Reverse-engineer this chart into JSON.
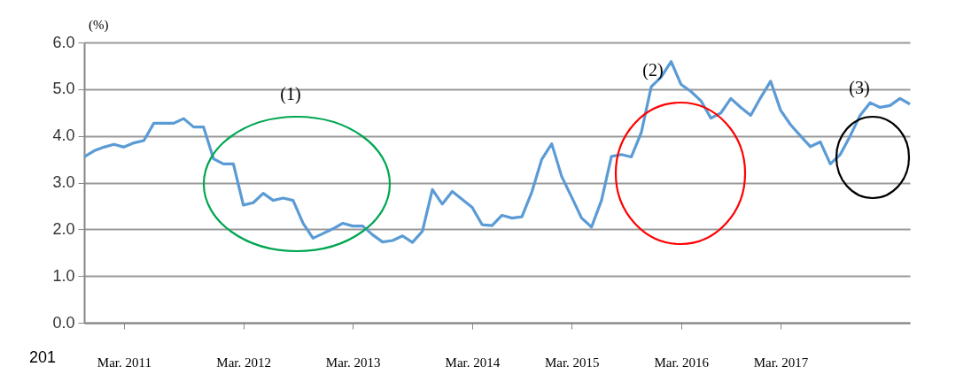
{
  "chart_data": {
    "type": "line",
    "ylabel": "(%)",
    "categories": [
      null,
      null,
      null,
      null,
      "Mar. 2011",
      null,
      null,
      null,
      null,
      null,
      null,
      null,
      null,
      null,
      null,
      null,
      "Mar. 2012",
      null,
      null,
      null,
      null,
      null,
      null,
      null,
      null,
      null,
      null,
      "Mar. 2013",
      null,
      null,
      null,
      null,
      null,
      null,
      null,
      null,
      null,
      null,
      null,
      "Mar. 2014",
      null,
      null,
      null,
      null,
      null,
      null,
      null,
      null,
      null,
      "Mar. 2015",
      null,
      null,
      null,
      null,
      null,
      null,
      null,
      null,
      null,
      null,
      "Mar. 2016",
      null,
      null,
      null,
      null,
      null,
      null,
      null,
      null,
      null,
      "Mar. 2017",
      null,
      null,
      null,
      null,
      null,
      null,
      null,
      null,
      null,
      null,
      null,
      null,
      null
    ],
    "series": [
      {
        "color": "#5b9bd5",
        "values": [
          3.55,
          3.68,
          3.76,
          3.82,
          3.76,
          3.85,
          3.9,
          4.27,
          4.27,
          4.27,
          4.37,
          4.19,
          4.19,
          3.51,
          3.4,
          3.4,
          2.52,
          2.57,
          2.77,
          2.62,
          2.67,
          2.62,
          2.13,
          1.81,
          1.91,
          2.01,
          2.13,
          2.07,
          2.07,
          1.88,
          1.73,
          1.76,
          1.86,
          1.72,
          1.96,
          2.85,
          2.54,
          2.81,
          2.64,
          2.47,
          2.1,
          2.08,
          2.3,
          2.24,
          2.27,
          2.8,
          3.5,
          3.83,
          3.13,
          2.69,
          2.24,
          2.05,
          2.62,
          3.56,
          3.6,
          3.55,
          4.07,
          5.05,
          5.26,
          5.59,
          5.1,
          4.95,
          4.75,
          4.38,
          4.49,
          4.8,
          4.61,
          4.44,
          4.82,
          5.17,
          4.55,
          4.24,
          4.0,
          3.77,
          3.87,
          3.4,
          3.6,
          4.0,
          4.44,
          4.71,
          4.61,
          4.65,
          4.8,
          4.68
        ]
      }
    ],
    "ylim": [
      0,
      6
    ],
    "yticks": [
      {
        "value": 0,
        "label": "0.0"
      },
      {
        "value": 1,
        "label": "1.0"
      },
      {
        "value": 2,
        "label": "2.0"
      },
      {
        "value": 3,
        "label": "3.0"
      },
      {
        "value": 4,
        "label": "4.0"
      },
      {
        "value": 5,
        "label": "5.0"
      },
      {
        "value": 6,
        "label": "6.0"
      }
    ],
    "grid": "y",
    "legend": false,
    "marker": "none",
    "line_style": "solid",
    "annotations": [
      "(1)",
      "(2)",
      "(3)",
      "201"
    ]
  }
}
